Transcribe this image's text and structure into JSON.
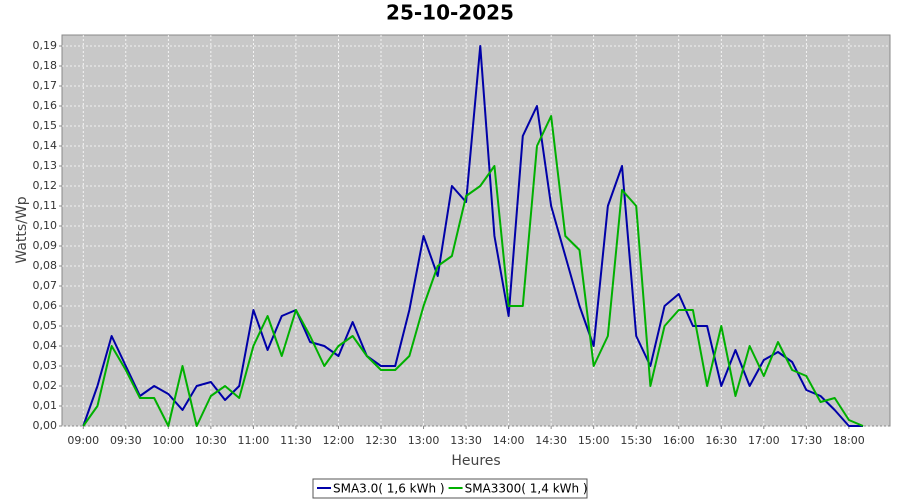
{
  "chart_data": {
    "type": "line",
    "title": "25-10-2025",
    "x_label": "Heures",
    "y_label": "Watts/Wp",
    "x": [
      "09:00",
      "09:10",
      "09:20",
      "09:30",
      "09:40",
      "09:50",
      "10:00",
      "10:10",
      "10:20",
      "10:30",
      "10:40",
      "10:50",
      "11:00",
      "11:10",
      "11:20",
      "11:30",
      "11:40",
      "11:50",
      "12:00",
      "12:10",
      "12:20",
      "12:30",
      "12:40",
      "12:50",
      "13:00",
      "13:10",
      "13:20",
      "13:30",
      "13:40",
      "13:50",
      "14:00",
      "14:10",
      "14:20",
      "14:30",
      "14:40",
      "14:50",
      "15:00",
      "15:10",
      "15:20",
      "15:30",
      "15:40",
      "15:50",
      "16:00",
      "16:10",
      "16:20",
      "16:30",
      "16:40",
      "16:50",
      "17:00",
      "17:10",
      "17:20",
      "17:30",
      "17:40",
      "17:50",
      "18:00",
      "18:10"
    ],
    "series": [
      {
        "name": "SMA3.0( 1,6 kWh )",
        "color": "#0000a8",
        "values": [
          0.0,
          0.02,
          0.045,
          0.03,
          0.015,
          0.02,
          0.016,
          0.008,
          0.02,
          0.022,
          0.013,
          0.02,
          0.058,
          0.038,
          0.055,
          0.058,
          0.042,
          0.04,
          0.035,
          0.052,
          0.035,
          0.03,
          0.03,
          0.058,
          0.095,
          0.075,
          0.12,
          0.112,
          0.19,
          0.095,
          0.055,
          0.145,
          0.16,
          0.11,
          0.085,
          0.06,
          0.04,
          0.11,
          0.13,
          0.045,
          0.03,
          0.06,
          0.066,
          0.05,
          0.05,
          0.02,
          0.038,
          0.02,
          0.033,
          0.037,
          0.032,
          0.018,
          0.015,
          0.008,
          0.0,
          0.0
        ]
      },
      {
        "name": "SMA3300( 1,4 kWh )",
        "color": "#00b000",
        "values": [
          0.0,
          0.01,
          0.04,
          0.028,
          0.014,
          0.014,
          0.0,
          0.03,
          0.0,
          0.015,
          0.02,
          0.014,
          0.04,
          0.055,
          0.035,
          0.058,
          0.045,
          0.03,
          0.04,
          0.045,
          0.035,
          0.028,
          0.028,
          0.035,
          0.06,
          0.08,
          0.085,
          0.115,
          0.12,
          0.13,
          0.06,
          0.06,
          0.14,
          0.155,
          0.095,
          0.088,
          0.03,
          0.045,
          0.118,
          0.11,
          0.02,
          0.05,
          0.058,
          0.058,
          0.02,
          0.05,
          0.015,
          0.04,
          0.025,
          0.042,
          0.028,
          0.025,
          0.012,
          0.014,
          0.003,
          0.0
        ]
      }
    ],
    "xlim": [
      "08:45",
      "18:29"
    ],
    "xticks": [
      "09:00",
      "09:30",
      "10:00",
      "10:30",
      "11:00",
      "11:30",
      "12:00",
      "12:30",
      "13:00",
      "13:30",
      "14:00",
      "14:30",
      "15:00",
      "15:30",
      "16:00",
      "16:30",
      "17:00",
      "17:30",
      "18:00"
    ],
    "ylim": [
      0,
      0.1955
    ],
    "yticks": [
      {
        "value": 0,
        "label": "0,00"
      },
      {
        "value": 0.01,
        "label": "0,01"
      },
      {
        "value": 0.02,
        "label": "0,02"
      },
      {
        "value": 0.03,
        "label": "0,03"
      },
      {
        "value": 0.04,
        "label": "0,04"
      },
      {
        "value": 0.05,
        "label": "0,05"
      },
      {
        "value": 0.06,
        "label": "0,06"
      },
      {
        "value": 0.07,
        "label": "0,07"
      },
      {
        "value": 0.08,
        "label": "0,08"
      },
      {
        "value": 0.09,
        "label": "0,09"
      },
      {
        "value": 0.1,
        "label": "0,10"
      },
      {
        "value": 0.11,
        "label": "0,11"
      },
      {
        "value": 0.12,
        "label": "0,12"
      },
      {
        "value": 0.13,
        "label": "0,13"
      },
      {
        "value": 0.14,
        "label": "0,14"
      },
      {
        "value": 0.15,
        "label": "0,15"
      },
      {
        "value": 0.16,
        "label": "0,16"
      },
      {
        "value": 0.17,
        "label": "0,17"
      },
      {
        "value": 0.18,
        "label": "0,18"
      },
      {
        "value": 0.19,
        "label": "0,19"
      }
    ],
    "grid": true
  }
}
